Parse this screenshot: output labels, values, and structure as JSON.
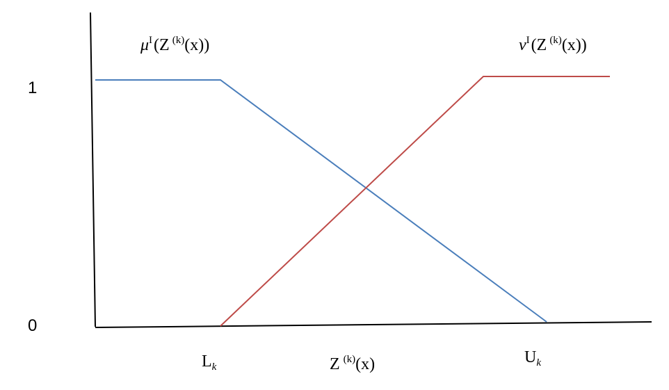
{
  "y_axis": {
    "labels": [
      "1",
      "0"
    ]
  },
  "curves": [
    {
      "symbol": "μ",
      "superscript": "I",
      "argument": "(Z",
      "argument_superscript": "(k)",
      "argument_end": "(x))"
    },
    {
      "symbol": "ν",
      "superscript": "I",
      "argument": "(Z",
      "argument_superscript": "(k)",
      "argument_end": "(x))"
    }
  ],
  "x_axis": {
    "labels": [
      {
        "text": "L",
        "subscript": "k"
      },
      {
        "text": "Z",
        "superscript": "(k)",
        "end": "(x)"
      },
      {
        "text": "U",
        "subscript": "k"
      }
    ]
  }
}
